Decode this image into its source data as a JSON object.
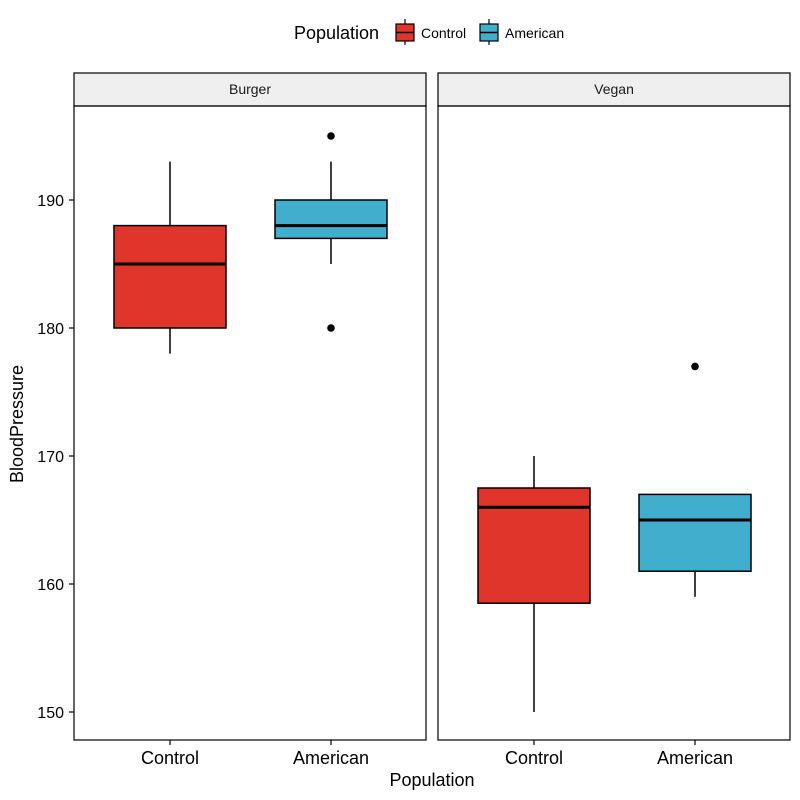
{
  "chart_data": {
    "type": "boxplot",
    "xlabel": "Population",
    "ylabel": "BloodPressure",
    "ylim": [
      148,
      199
    ],
    "yticks": [
      150,
      160,
      170,
      180,
      190
    ],
    "categories": [
      "Control",
      "American"
    ],
    "legend": {
      "title": "Population",
      "position": "top",
      "entries": [
        {
          "label": "Control",
          "color": "#e0352a"
        },
        {
          "label": "American",
          "color": "#41aece"
        }
      ]
    },
    "panels": [
      {
        "title": "Burger",
        "boxes": [
          {
            "category": "Control",
            "whisker_low": 178,
            "q1": 180,
            "median": 185,
            "q3": 188,
            "whisker_high": 193,
            "outliers": []
          },
          {
            "category": "American",
            "whisker_low": 185,
            "q1": 187,
            "median": 188,
            "q3": 190,
            "whisker_high": 193,
            "outliers": [
              195,
              180
            ]
          }
        ]
      },
      {
        "title": "Vegan",
        "boxes": [
          {
            "category": "Control",
            "whisker_low": 150,
            "q1": 158.5,
            "median": 166,
            "q3": 167.5,
            "whisker_high": 170,
            "outliers": []
          },
          {
            "category": "American",
            "whisker_low": 159,
            "q1": 161,
            "median": 165,
            "q3": 167,
            "whisker_high": 167,
            "outliers": [
              177
            ]
          }
        ]
      }
    ],
    "grid": false,
    "strip_color": "#efefef"
  }
}
